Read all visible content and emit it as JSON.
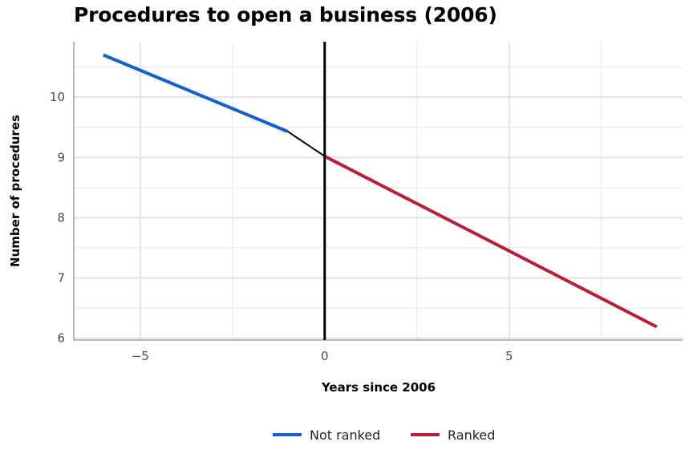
{
  "chart_data": {
    "type": "line",
    "title": "Procedures to open a business (2006)",
    "xlabel": "Years since 2006",
    "ylabel": "Number of procedures",
    "xlim": [
      -6.8,
      9.7
    ],
    "ylim": [
      5.97,
      10.92
    ],
    "x_ticks": [
      -5,
      0,
      5
    ],
    "y_ticks": [
      6,
      7,
      8,
      9,
      10
    ],
    "grid": true,
    "cutoff_x": 0,
    "legend_position": "bottom",
    "series": [
      {
        "name": "Not ranked",
        "color": "#1560c9",
        "x": [
          -6,
          -1
        ],
        "y": [
          10.7,
          9.43
        ]
      },
      {
        "name": "Ranked",
        "color": "#b8203a",
        "x": [
          0,
          9
        ],
        "y": [
          9.02,
          6.19
        ]
      }
    ],
    "connector": {
      "color": "#000000",
      "x": [
        -1,
        0
      ],
      "y": [
        9.43,
        9.02
      ]
    }
  }
}
